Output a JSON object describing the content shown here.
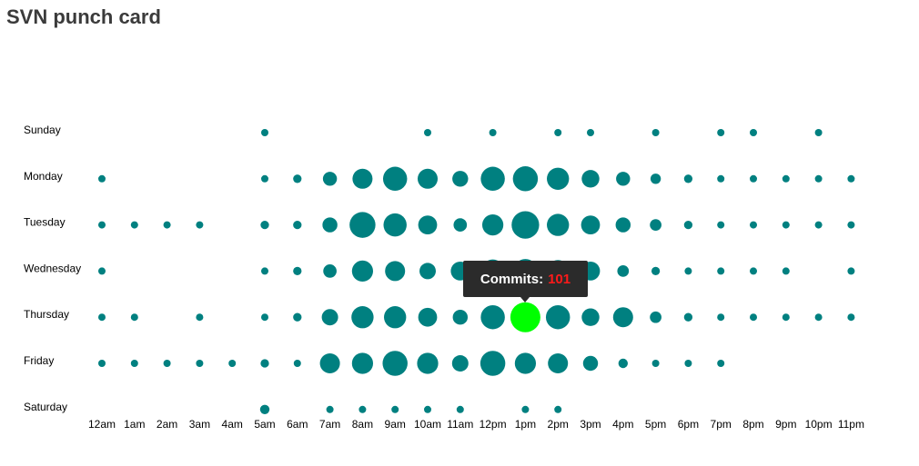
{
  "page": {
    "title": "SVN punch card"
  },
  "chart_data": {
    "type": "scatter",
    "title": "SVN punch card",
    "days": [
      "Sunday",
      "Monday",
      "Tuesday",
      "Wednesday",
      "Thursday",
      "Friday",
      "Saturday"
    ],
    "hours": [
      "12am",
      "1am",
      "2am",
      "3am",
      "4am",
      "5am",
      "6am",
      "7am",
      "8am",
      "9am",
      "10am",
      "11am",
      "12pm",
      "1pm",
      "2pm",
      "3pm",
      "4pm",
      "5pm",
      "6pm",
      "7pm",
      "8pm",
      "9pm",
      "10pm",
      "11pm"
    ],
    "commits": [
      [
        0,
        0,
        0,
        0,
        0,
        5,
        0,
        0,
        0,
        0,
        5,
        0,
        5,
        0,
        5,
        5,
        0,
        5,
        0,
        5,
        5,
        0,
        5,
        0
      ],
      [
        5,
        0,
        0,
        0,
        0,
        5,
        8,
        22,
        45,
        65,
        45,
        28,
        65,
        70,
        55,
        35,
        22,
        12,
        8,
        5,
        5,
        5,
        5,
        5
      ],
      [
        5,
        5,
        5,
        5,
        0,
        8,
        8,
        25,
        75,
        60,
        40,
        20,
        50,
        85,
        55,
        40,
        25,
        15,
        8,
        5,
        5,
        5,
        5,
        5
      ],
      [
        5,
        0,
        0,
        0,
        0,
        5,
        8,
        20,
        50,
        45,
        30,
        40,
        60,
        65,
        55,
        40,
        15,
        8,
        5,
        5,
        5,
        5,
        0,
        5
      ],
      [
        5,
        5,
        0,
        5,
        0,
        5,
        8,
        30,
        55,
        55,
        40,
        25,
        65,
        101,
        65,
        35,
        45,
        15,
        8,
        5,
        5,
        5,
        5,
        5
      ],
      [
        5,
        5,
        5,
        5,
        5,
        8,
        5,
        45,
        50,
        70,
        50,
        30,
        70,
        50,
        45,
        25,
        10,
        5,
        5,
        5,
        0,
        0,
        0,
        0
      ],
      [
        0,
        0,
        0,
        0,
        0,
        10,
        0,
        5,
        5,
        5,
        5,
        5,
        0,
        5,
        5,
        0,
        0,
        0,
        0,
        0,
        0,
        0,
        0,
        0
      ]
    ],
    "max_commits": 101,
    "colors": {
      "dot": "#008080",
      "highlight": "#00ff00"
    },
    "highlight": {
      "day": "Thursday",
      "hour": "1pm",
      "value": 101
    }
  },
  "tooltip": {
    "label": "Commits:",
    "value": "101"
  }
}
